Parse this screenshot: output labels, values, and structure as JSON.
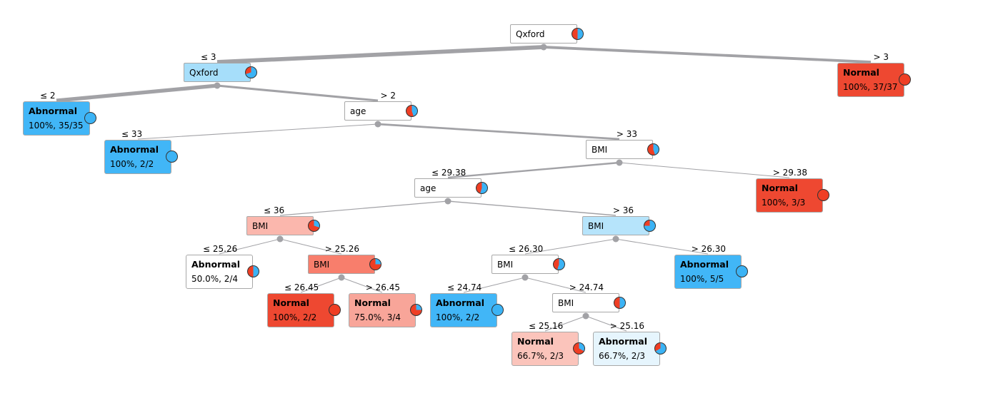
{
  "colors": {
    "edge": "#a2a2a6",
    "abnormal": "#3bb3f5",
    "normal": "#ef3e24",
    "border": "#a8a8a8"
  },
  "nodes": {
    "n0": {
      "type": "split",
      "label": "Qxford",
      "fill": "#ffffff",
      "abn_frac": 0.5
    },
    "n1": {
      "type": "split",
      "label": "Qxford",
      "fill": "#a6defa",
      "abn_frac": 0.7
    },
    "n2": {
      "type": "leaf",
      "cls": "Normal",
      "stat": "100%, 37/37",
      "fill": "#ee4831",
      "abn_frac": 0.0
    },
    "n3": {
      "type": "leaf",
      "cls": "Abnormal",
      "stat": "100%, 35/35",
      "fill": "#41b6f7",
      "abn_frac": 1.0
    },
    "n4": {
      "type": "split",
      "label": "age",
      "fill": "#ffffff",
      "abn_frac": 0.45
    },
    "n5": {
      "type": "leaf",
      "cls": "Abnormal",
      "stat": "100%, 2/2",
      "fill": "#41b6f7",
      "abn_frac": 1.0
    },
    "n6": {
      "type": "split",
      "label": "BMI",
      "fill": "#ffffff",
      "abn_frac": 0.45
    },
    "n7": {
      "type": "split",
      "label": "age",
      "fill": "#ffffff",
      "abn_frac": 0.55
    },
    "n8": {
      "type": "leaf",
      "cls": "Normal",
      "stat": "100%, 3/3",
      "fill": "#ee4831",
      "abn_frac": 0.0
    },
    "n9": {
      "type": "split",
      "label": "BMI",
      "fill": "#fbb7ad",
      "abn_frac": 0.3
    },
    "n10": {
      "type": "split",
      "label": "BMI",
      "fill": "#b6e4fb",
      "abn_frac": 0.75
    },
    "n11": {
      "type": "leaf",
      "cls": "Abnormal",
      "stat": "50.0%, 2/4",
      "fill": "#ffffff",
      "abn_frac": 0.5
    },
    "n12": {
      "type": "split",
      "label": "BMI",
      "fill": "#f87e6c",
      "abn_frac": 0.25
    },
    "n13": {
      "type": "split",
      "label": "BMI",
      "fill": "#ffffff",
      "abn_frac": 0.55
    },
    "n14": {
      "type": "leaf",
      "cls": "Abnormal",
      "stat": "100%, 5/5",
      "fill": "#41b6f7",
      "abn_frac": 1.0
    },
    "n15": {
      "type": "leaf",
      "cls": "Normal",
      "stat": "100%, 2/2",
      "fill": "#ee4831",
      "abn_frac": 0.0
    },
    "n16": {
      "type": "leaf",
      "cls": "Normal",
      "stat": "75.0%, 3/4",
      "fill": "#f8a599",
      "abn_frac": 0.25
    },
    "n17": {
      "type": "leaf",
      "cls": "Abnormal",
      "stat": "100%, 2/2",
      "fill": "#41b6f7",
      "abn_frac": 1.0
    },
    "n18": {
      "type": "split",
      "label": "BMI",
      "fill": "#ffffff",
      "abn_frac": 0.5
    },
    "n19": {
      "type": "leaf",
      "cls": "Normal",
      "stat": "66.7%, 2/3",
      "fill": "#fbc4bb",
      "abn_frac": 0.33
    },
    "n20": {
      "type": "leaf",
      "cls": "Abnormal",
      "stat": "66.7%, 2/3",
      "fill": "#e6f5fd",
      "abn_frac": 0.67
    }
  },
  "edges": [
    {
      "from": "n0",
      "to": "n1",
      "label": "≤ 3",
      "weight": 0.48
    },
    {
      "from": "n0",
      "to": "n2",
      "label": "> 3",
      "weight": 0.32
    },
    {
      "from": "n1",
      "to": "n3",
      "label": "≤ 2",
      "weight": 0.44
    },
    {
      "from": "n1",
      "to": "n4",
      "label": "> 2",
      "weight": 0.26
    },
    {
      "from": "n4",
      "to": "n5",
      "label": "≤ 33",
      "weight": 0.03
    },
    {
      "from": "n4",
      "to": "n6",
      "label": "> 33",
      "weight": 0.23
    },
    {
      "from": "n6",
      "to": "n7",
      "label": "≤ 29.38",
      "weight": 0.2
    },
    {
      "from": "n6",
      "to": "n8",
      "label": "> 29.38",
      "weight": 0.04
    },
    {
      "from": "n7",
      "to": "n9",
      "label": "≤ 36",
      "weight": 0.1
    },
    {
      "from": "n7",
      "to": "n10",
      "label": "> 36",
      "weight": 0.12
    },
    {
      "from": "n9",
      "to": "n11",
      "label": "≤ 25.26",
      "weight": 0.05
    },
    {
      "from": "n9",
      "to": "n12",
      "label": "> 25.26",
      "weight": 0.07
    },
    {
      "from": "n10",
      "to": "n13",
      "label": "≤ 26.30",
      "weight": 0.08
    },
    {
      "from": "n10",
      "to": "n14",
      "label": "> 26.30",
      "weight": 0.06
    },
    {
      "from": "n12",
      "to": "n15",
      "label": "≤ 26.45",
      "weight": 0.03
    },
    {
      "from": "n12",
      "to": "n16",
      "label": "> 26.45",
      "weight": 0.05
    },
    {
      "from": "n13",
      "to": "n17",
      "label": "≤ 24.74",
      "weight": 0.03
    },
    {
      "from": "n13",
      "to": "n18",
      "label": "> 24.74",
      "weight": 0.08
    },
    {
      "from": "n18",
      "to": "n19",
      "label": "≤ 25.16",
      "weight": 0.04
    },
    {
      "from": "n18",
      "to": "n20",
      "label": "> 25.16",
      "weight": 0.04
    }
  ]
}
